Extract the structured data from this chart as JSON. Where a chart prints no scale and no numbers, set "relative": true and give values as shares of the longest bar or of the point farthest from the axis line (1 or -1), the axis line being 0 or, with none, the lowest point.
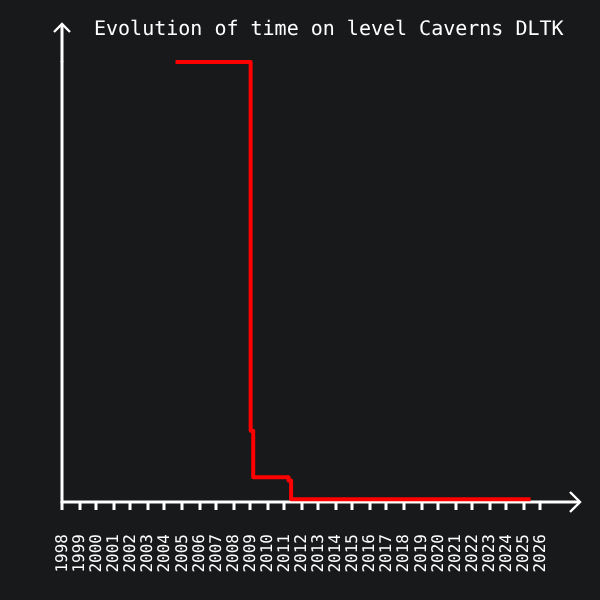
{
  "chart_data": {
    "type": "step",
    "title": "Evolution of time on level Caverns DLTK",
    "relative": true,
    "x": [
      2004.65,
      2009.05,
      2009.2,
      2011.27,
      2011.42,
      2025.45
    ],
    "series": [
      {
        "color": "#ff0000",
        "values": [
          1,
          0.162,
          0.056,
          0.049,
          0.006,
          0.006
        ]
      }
    ],
    "xlim": [
      1998,
      2026
    ],
    "xticks": [
      1998,
      1999,
      2000,
      2001,
      2002,
      2003,
      2004,
      2005,
      2006,
      2007,
      2008,
      2009,
      2010,
      2011,
      2012,
      2013,
      2014,
      2015,
      2016,
      2017,
      2018,
      2019,
      2020,
      2021,
      2022,
      2023,
      2024,
      2025,
      2026
    ],
    "grid": false,
    "marker": "none"
  }
}
